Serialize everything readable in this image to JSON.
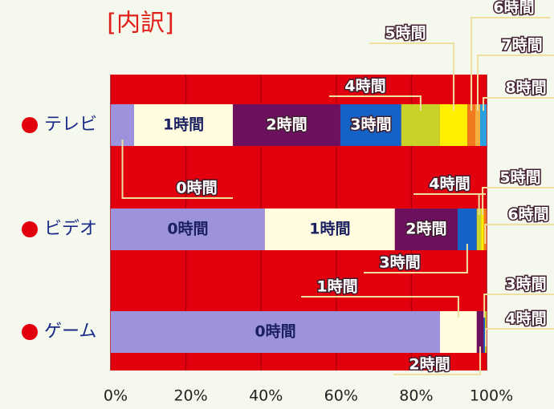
{
  "chart_data": {
    "type": "stacked-bar-horizontal",
    "title": "[内訳]",
    "categories": [
      "テレビ",
      "ビデオ",
      "ゲーム"
    ],
    "xlim": [
      0,
      100
    ],
    "xticks": [
      {
        "value": 0,
        "label": "0%"
      },
      {
        "value": 20,
        "label": "20%"
      },
      {
        "value": 40,
        "label": "40%"
      },
      {
        "value": 60,
        "label": "60%"
      },
      {
        "value": 80,
        "label": "80%"
      },
      {
        "value": 100,
        "label": "100%"
      }
    ],
    "grid": true,
    "series": [
      {
        "name": "0時間",
        "color": "#9d92dc",
        "values": [
          6.2,
          41,
          87.6
        ]
      },
      {
        "name": "1時間",
        "color": "#fffce0",
        "values": [
          26.3,
          34.6,
          9.8
        ]
      },
      {
        "name": "2時間",
        "color": "#6e1060",
        "values": [
          28.6,
          16.7,
          1.8
        ]
      },
      {
        "name": "3時間",
        "color": "#1462c8",
        "values": [
          16.2,
          5.1,
          0.4
        ]
      },
      {
        "name": "4時間",
        "color": "#c8d228",
        "values": [
          10.3,
          1.2,
          0.4
        ]
      },
      {
        "name": "5時間",
        "color": "#fff000",
        "values": [
          7.3,
          0.7,
          null
        ]
      },
      {
        "name": "6時間",
        "color": "#f07a1e",
        "values": [
          2.1,
          0.7,
          null
        ]
      },
      {
        "name": "7時間",
        "color": "#f4b040",
        "values": [
          1.3,
          null,
          null
        ]
      },
      {
        "name": "8時間",
        "color": "#28a0e0",
        "values": [
          1.7,
          null,
          null
        ]
      }
    ]
  }
}
